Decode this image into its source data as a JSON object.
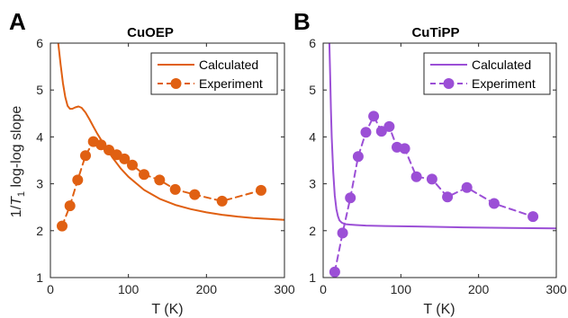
{
  "ylabel_prefix": "1/",
  "ylabel_T": "T",
  "ylabel_sub": "1",
  "ylabel_suffix": " log-log slope",
  "chart_data": [
    {
      "type": "line",
      "panel_letter": "A",
      "title": "CuOEP",
      "xlabel": "T (K)",
      "xlim": [
        0,
        300
      ],
      "ylim": [
        1,
        6
      ],
      "xticks": [
        0,
        100,
        200,
        300
      ],
      "yticks": [
        1,
        2,
        3,
        4,
        5,
        6
      ],
      "legend_position": "top-right",
      "color": "#e06012",
      "series": [
        {
          "name": "Calculated",
          "style": "solid",
          "x": [
            10,
            13,
            16,
            19,
            22,
            25,
            28,
            32,
            36,
            40,
            45,
            50,
            55,
            60,
            70,
            80,
            90,
            100,
            120,
            140,
            160,
            180,
            200,
            220,
            240,
            260,
            280,
            300
          ],
          "y": [
            6.0,
            5.55,
            5.15,
            4.85,
            4.66,
            4.6,
            4.6,
            4.63,
            4.65,
            4.62,
            4.52,
            4.38,
            4.22,
            4.07,
            3.8,
            3.55,
            3.33,
            3.15,
            2.87,
            2.68,
            2.55,
            2.46,
            2.39,
            2.34,
            2.3,
            2.27,
            2.25,
            2.23
          ]
        },
        {
          "name": "Experiment",
          "style": "dashed-marker",
          "x": [
            15,
            25,
            35,
            45,
            55,
            65,
            75,
            85,
            95,
            105,
            120,
            140,
            160,
            185,
            220,
            270
          ],
          "y": [
            2.1,
            2.53,
            3.08,
            3.6,
            3.9,
            3.83,
            3.72,
            3.62,
            3.53,
            3.4,
            3.2,
            3.08,
            2.88,
            2.77,
            2.63,
            2.86
          ]
        }
      ]
    },
    {
      "type": "line",
      "panel_letter": "B",
      "title": "CuTiPP",
      "xlabel": "T (K)",
      "xlim": [
        0,
        300
      ],
      "ylim": [
        1,
        6
      ],
      "xticks": [
        0,
        100,
        200,
        300
      ],
      "yticks": [
        1,
        2,
        3,
        4,
        5,
        6
      ],
      "legend_position": "top-right",
      "color": "#9b4fd6",
      "series": [
        {
          "name": "Calculated",
          "style": "solid",
          "x": [
            8,
            9,
            10,
            11,
            12,
            13,
            14,
            15,
            17,
            19,
            21,
            24,
            28,
            34,
            42,
            55,
            80,
            120,
            180,
            240,
            300
          ],
          "y": [
            6.0,
            5.3,
            4.6,
            4.0,
            3.6,
            3.25,
            2.98,
            2.75,
            2.46,
            2.31,
            2.22,
            2.17,
            2.14,
            2.13,
            2.12,
            2.11,
            2.1,
            2.09,
            2.07,
            2.06,
            2.05
          ]
        },
        {
          "name": "Experiment",
          "style": "dashed-marker",
          "x": [
            15,
            25,
            35,
            45,
            55,
            65,
            75,
            85,
            95,
            105,
            120,
            140,
            160,
            185,
            220,
            270
          ],
          "y": [
            1.12,
            1.95,
            2.7,
            3.58,
            4.1,
            4.44,
            4.12,
            4.22,
            3.78,
            3.75,
            3.15,
            3.1,
            2.72,
            2.92,
            2.58,
            2.3
          ]
        }
      ]
    }
  ]
}
